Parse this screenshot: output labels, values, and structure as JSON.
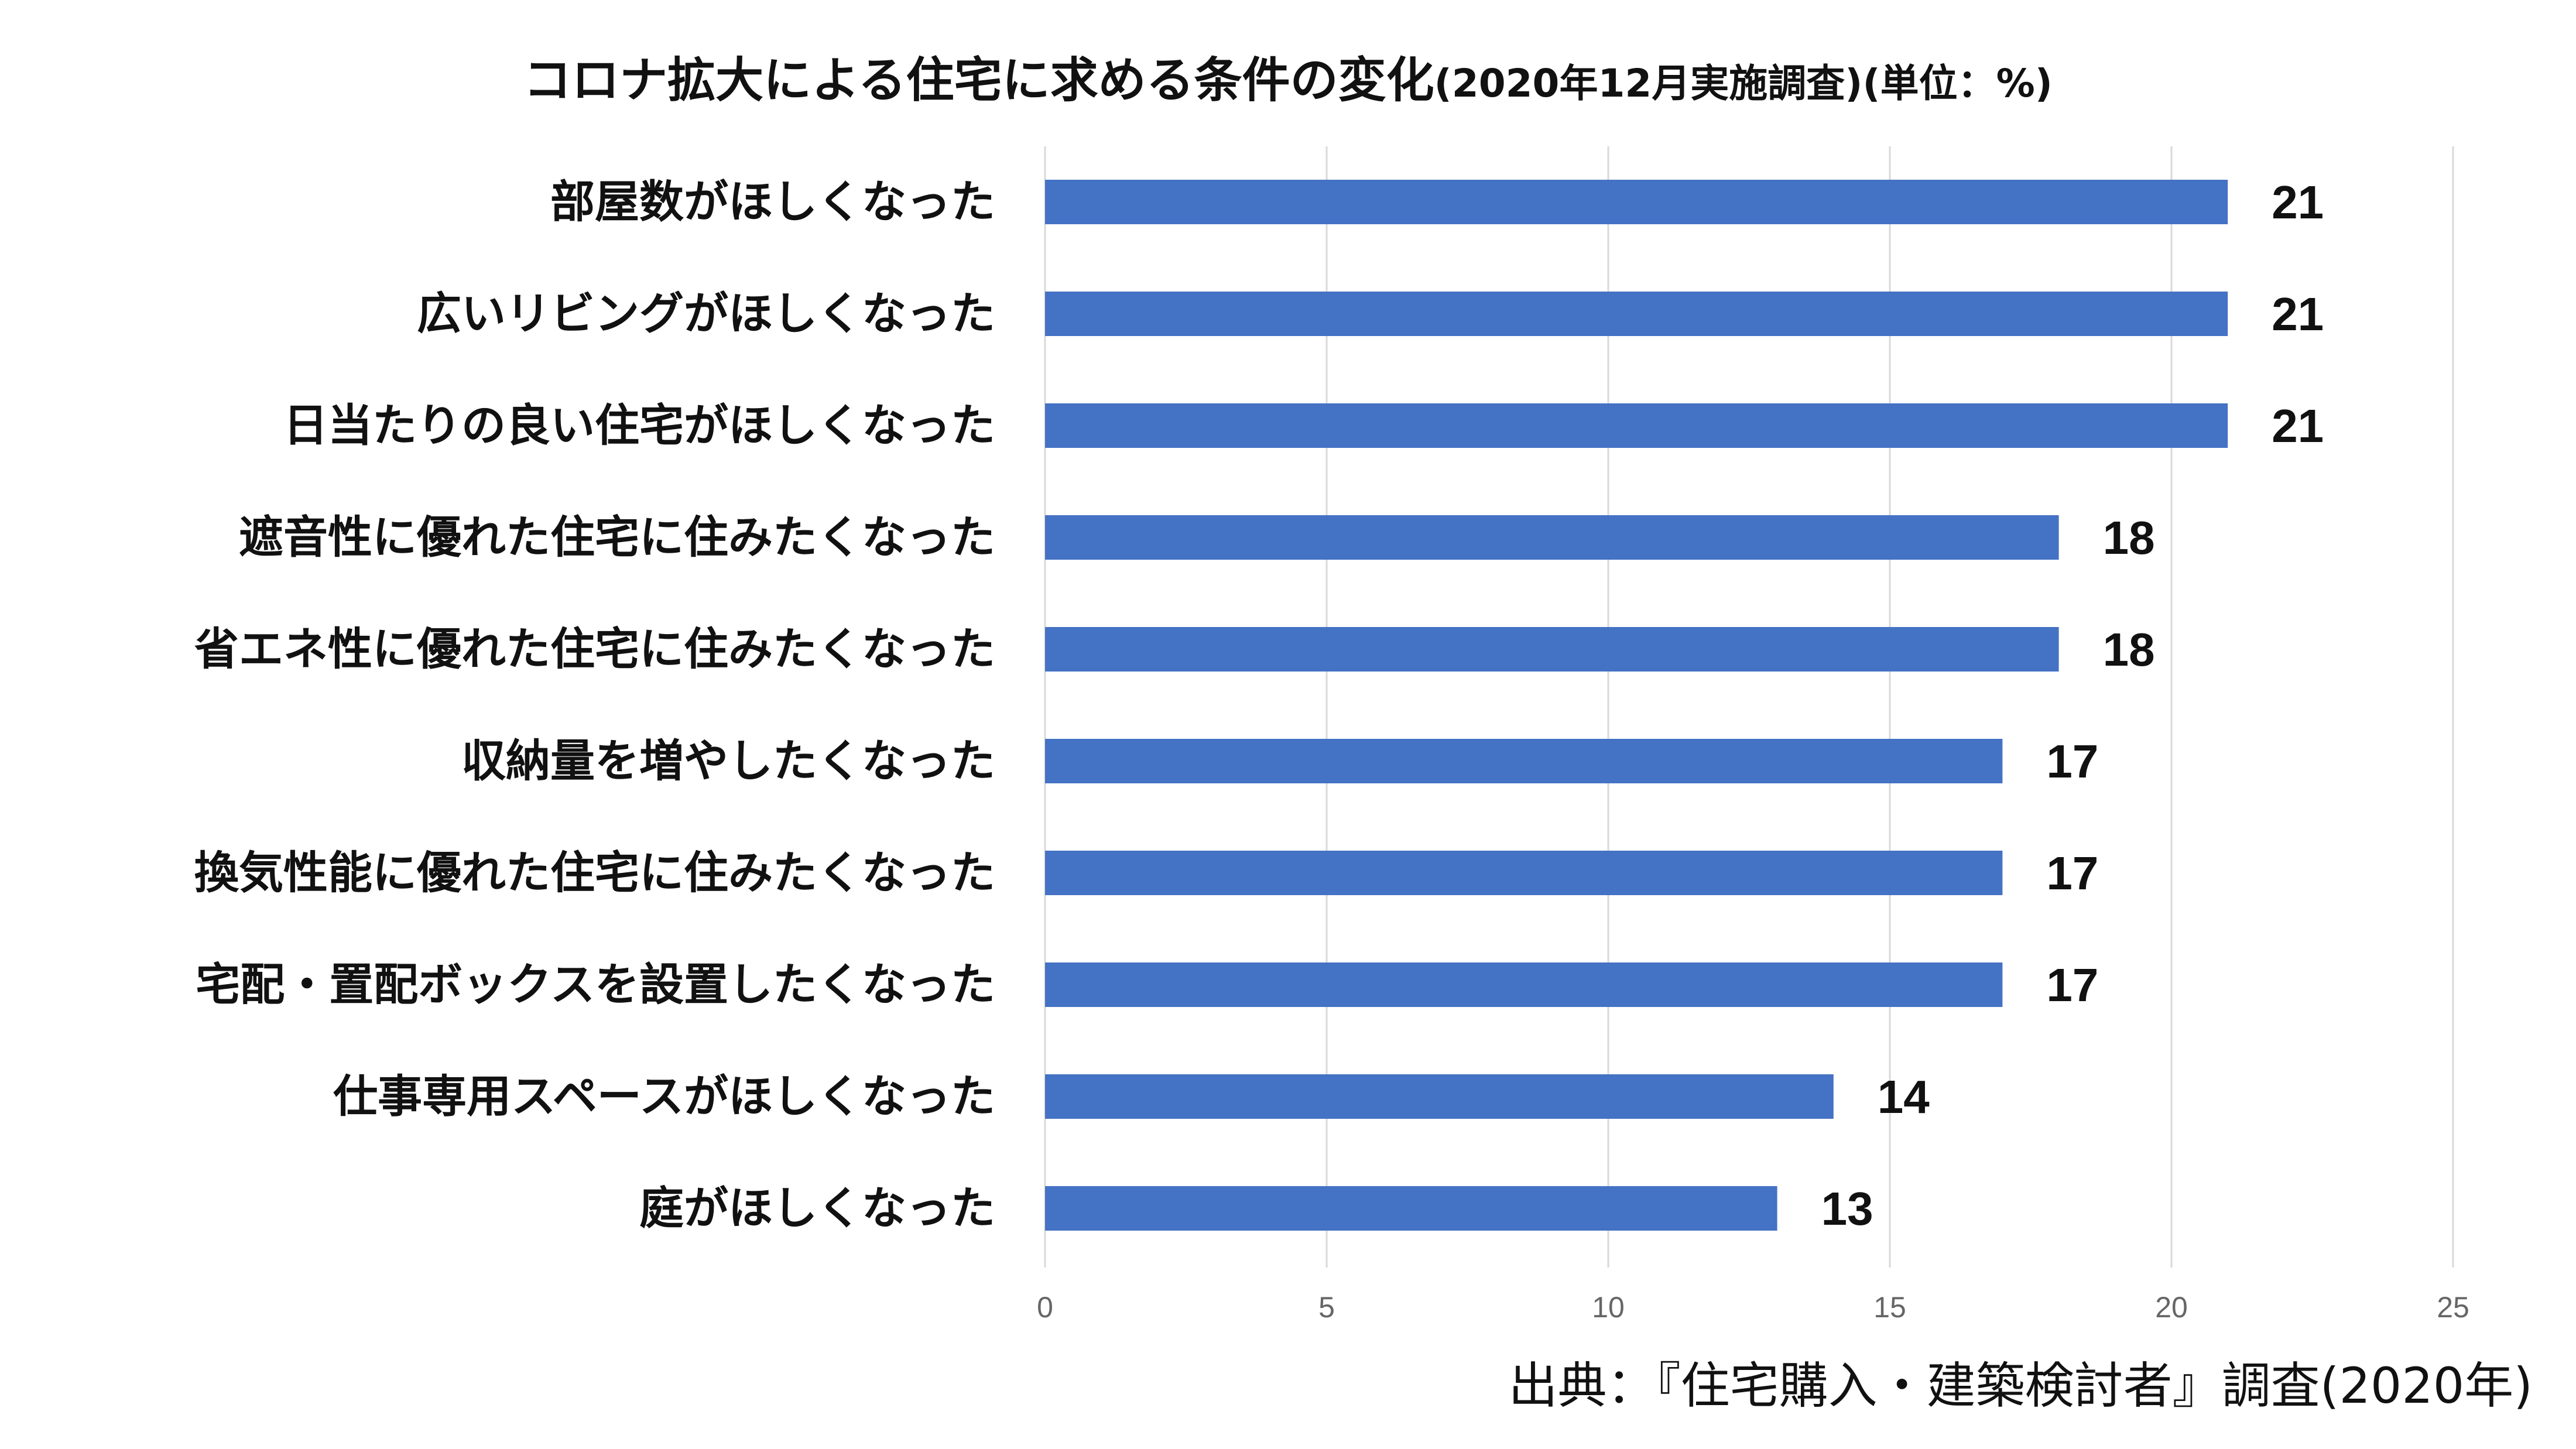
{
  "chart_data": {
    "type": "bar",
    "orientation": "horizontal",
    "title": "コロナ拡大による住宅に求める条件の変化",
    "subtitle": "(2020年12月実施調査)(単位：%)",
    "categories": [
      "部屋数がほしくなった",
      "広いリビングがほしくなった",
      "日当たりの良い住宅がほしくなった",
      "遮音性に優れた住宅に住みたくなった",
      "省エネ性に優れた住宅に住みたくなった",
      "収納量を増やしたくなった",
      "換気性能に優れた住宅に住みたくなった",
      "宅配・置配ボックスを設置したくなった",
      "仕事専用スペースがほしくなった",
      "庭がほしくなった"
    ],
    "values": [
      21,
      21,
      21,
      18,
      18,
      17,
      17,
      17,
      14,
      13
    ],
    "data_labels": [
      "21",
      "21",
      "21",
      "18",
      "18",
      "17",
      "17",
      "17",
      "14",
      "13"
    ],
    "xlim": [
      0,
      25
    ],
    "x_ticks": [
      "0",
      "5",
      "10",
      "15",
      "20",
      "25"
    ],
    "grid": true,
    "bar_color": "#4472c4",
    "source": "出典：『住宅購入・建築検討者』調査(2020年)"
  }
}
